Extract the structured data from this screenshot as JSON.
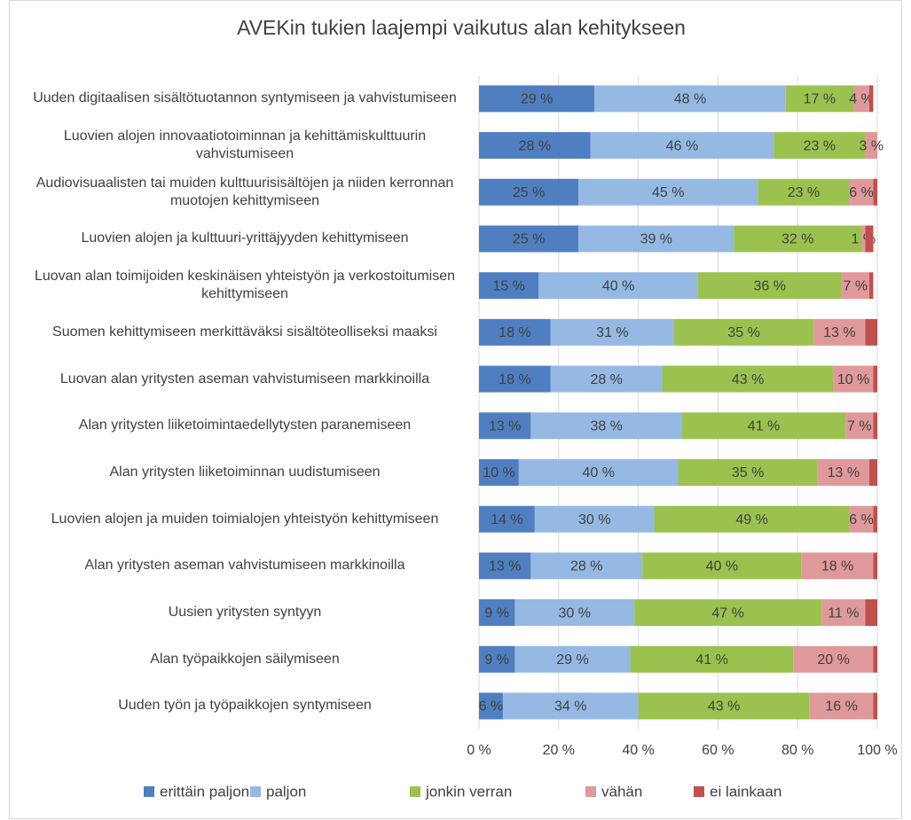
{
  "chart_data": {
    "type": "stacked-barh",
    "title": "AVEKin tukien laajempi vaikutus alan kehitykseen",
    "categories": [
      "Uuden digitaalisen sisältötuotannon syntymiseen ja vahvistumiseen",
      "Luovien alojen innovaatiotoiminnan ja kehittämiskulttuurin vahvistumiseen",
      "Audiovisuaalisten tai muiden kulttuurisisältöjen ja niiden kerronnan muotojen kehittymiseen",
      "Luovien alojen ja kulttuuri-yrittäjyyden kehittymiseen",
      "Luovan alan toimijoiden keskinäisen yhteistyön ja verkostoitumisen kehittymiseen",
      "Suomen kehittymiseen merkittäväksi sisältöteolliseksi maaksi",
      "Luovan alan yritysten aseman vahvistumiseen markkinoilla",
      "Alan yritysten liiketoimintaedellytysten paranemiseen",
      "Alan yritysten liiketoiminnan uudistumiseen",
      "Luovien alojen ja muiden toimialojen yhteistyön kehittymiseen",
      "Alan yritysten aseman vahvistumiseen markkinoilla",
      "Uusien yritysten syntyyn",
      "Alan työpaikkojen säilymiseen",
      "Uuden työn ja työpaikkojen syntymiseen"
    ],
    "series": [
      {
        "name": "erittäin paljon",
        "color": "#4f7fc0",
        "values": [
          29,
          28,
          25,
          25,
          15,
          18,
          18,
          13,
          10,
          14,
          13,
          9,
          9,
          6
        ],
        "value_labels": [
          "29 %",
          "28 %",
          "25 %",
          "25 %",
          "15 %",
          "18 %",
          "18 %",
          "13 %",
          "10 %",
          "14 %",
          "13 %",
          "9 %",
          "9 %",
          "6 %"
        ]
      },
      {
        "name": "paljon",
        "color": "#95b9e3",
        "values": [
          48,
          46,
          45,
          39,
          40,
          31,
          28,
          38,
          40,
          30,
          28,
          30,
          29,
          34
        ],
        "value_labels": [
          "48 %",
          "46 %",
          "45 %",
          "39 %",
          "40 %",
          "31 %",
          "28 %",
          "38 %",
          "40 %",
          "30 %",
          "28 %",
          "30 %",
          "29 %",
          "34 %"
        ]
      },
      {
        "name": "jonkin verran",
        "color": "#9bc24f",
        "values": [
          17,
          23,
          23,
          32,
          36,
          35,
          43,
          41,
          35,
          49,
          40,
          47,
          41,
          43
        ],
        "value_labels": [
          "17 %",
          "23 %",
          "23 %",
          "32 %",
          "36 %",
          "35 %",
          "43 %",
          "41 %",
          "35 %",
          "49 %",
          "40 %",
          "47 %",
          "41 %",
          "43 %"
        ]
      },
      {
        "name": "vähän",
        "color": "#e0999a",
        "values": [
          4,
          3,
          6,
          1,
          7,
          13,
          10,
          7,
          13,
          6,
          18,
          11,
          20,
          16
        ],
        "value_labels": [
          "4 %",
          "3 %",
          "6 %",
          "1 %",
          "7 %",
          "13 %",
          "10 %",
          "7 %",
          "13 %",
          "6 %",
          "18 %",
          "11 %",
          "20 %",
          "16 %"
        ]
      },
      {
        "name": "ei lainkaan",
        "color": "#c0504d",
        "values": [
          1,
          0,
          1,
          2,
          1,
          3,
          1,
          1,
          2,
          1,
          1,
          3,
          1,
          1
        ]
      }
    ],
    "xlim": [
      0,
      100
    ],
    "xticks": [
      {
        "value": 0,
        "label": "0 %"
      },
      {
        "value": 20,
        "label": "20 %"
      },
      {
        "value": 40,
        "label": "40 %"
      },
      {
        "value": 60,
        "label": "60 %"
      },
      {
        "value": 80,
        "label": "80 %"
      },
      {
        "value": 100,
        "label": "100 %"
      }
    ],
    "grid": true,
    "legend": "bottom"
  }
}
